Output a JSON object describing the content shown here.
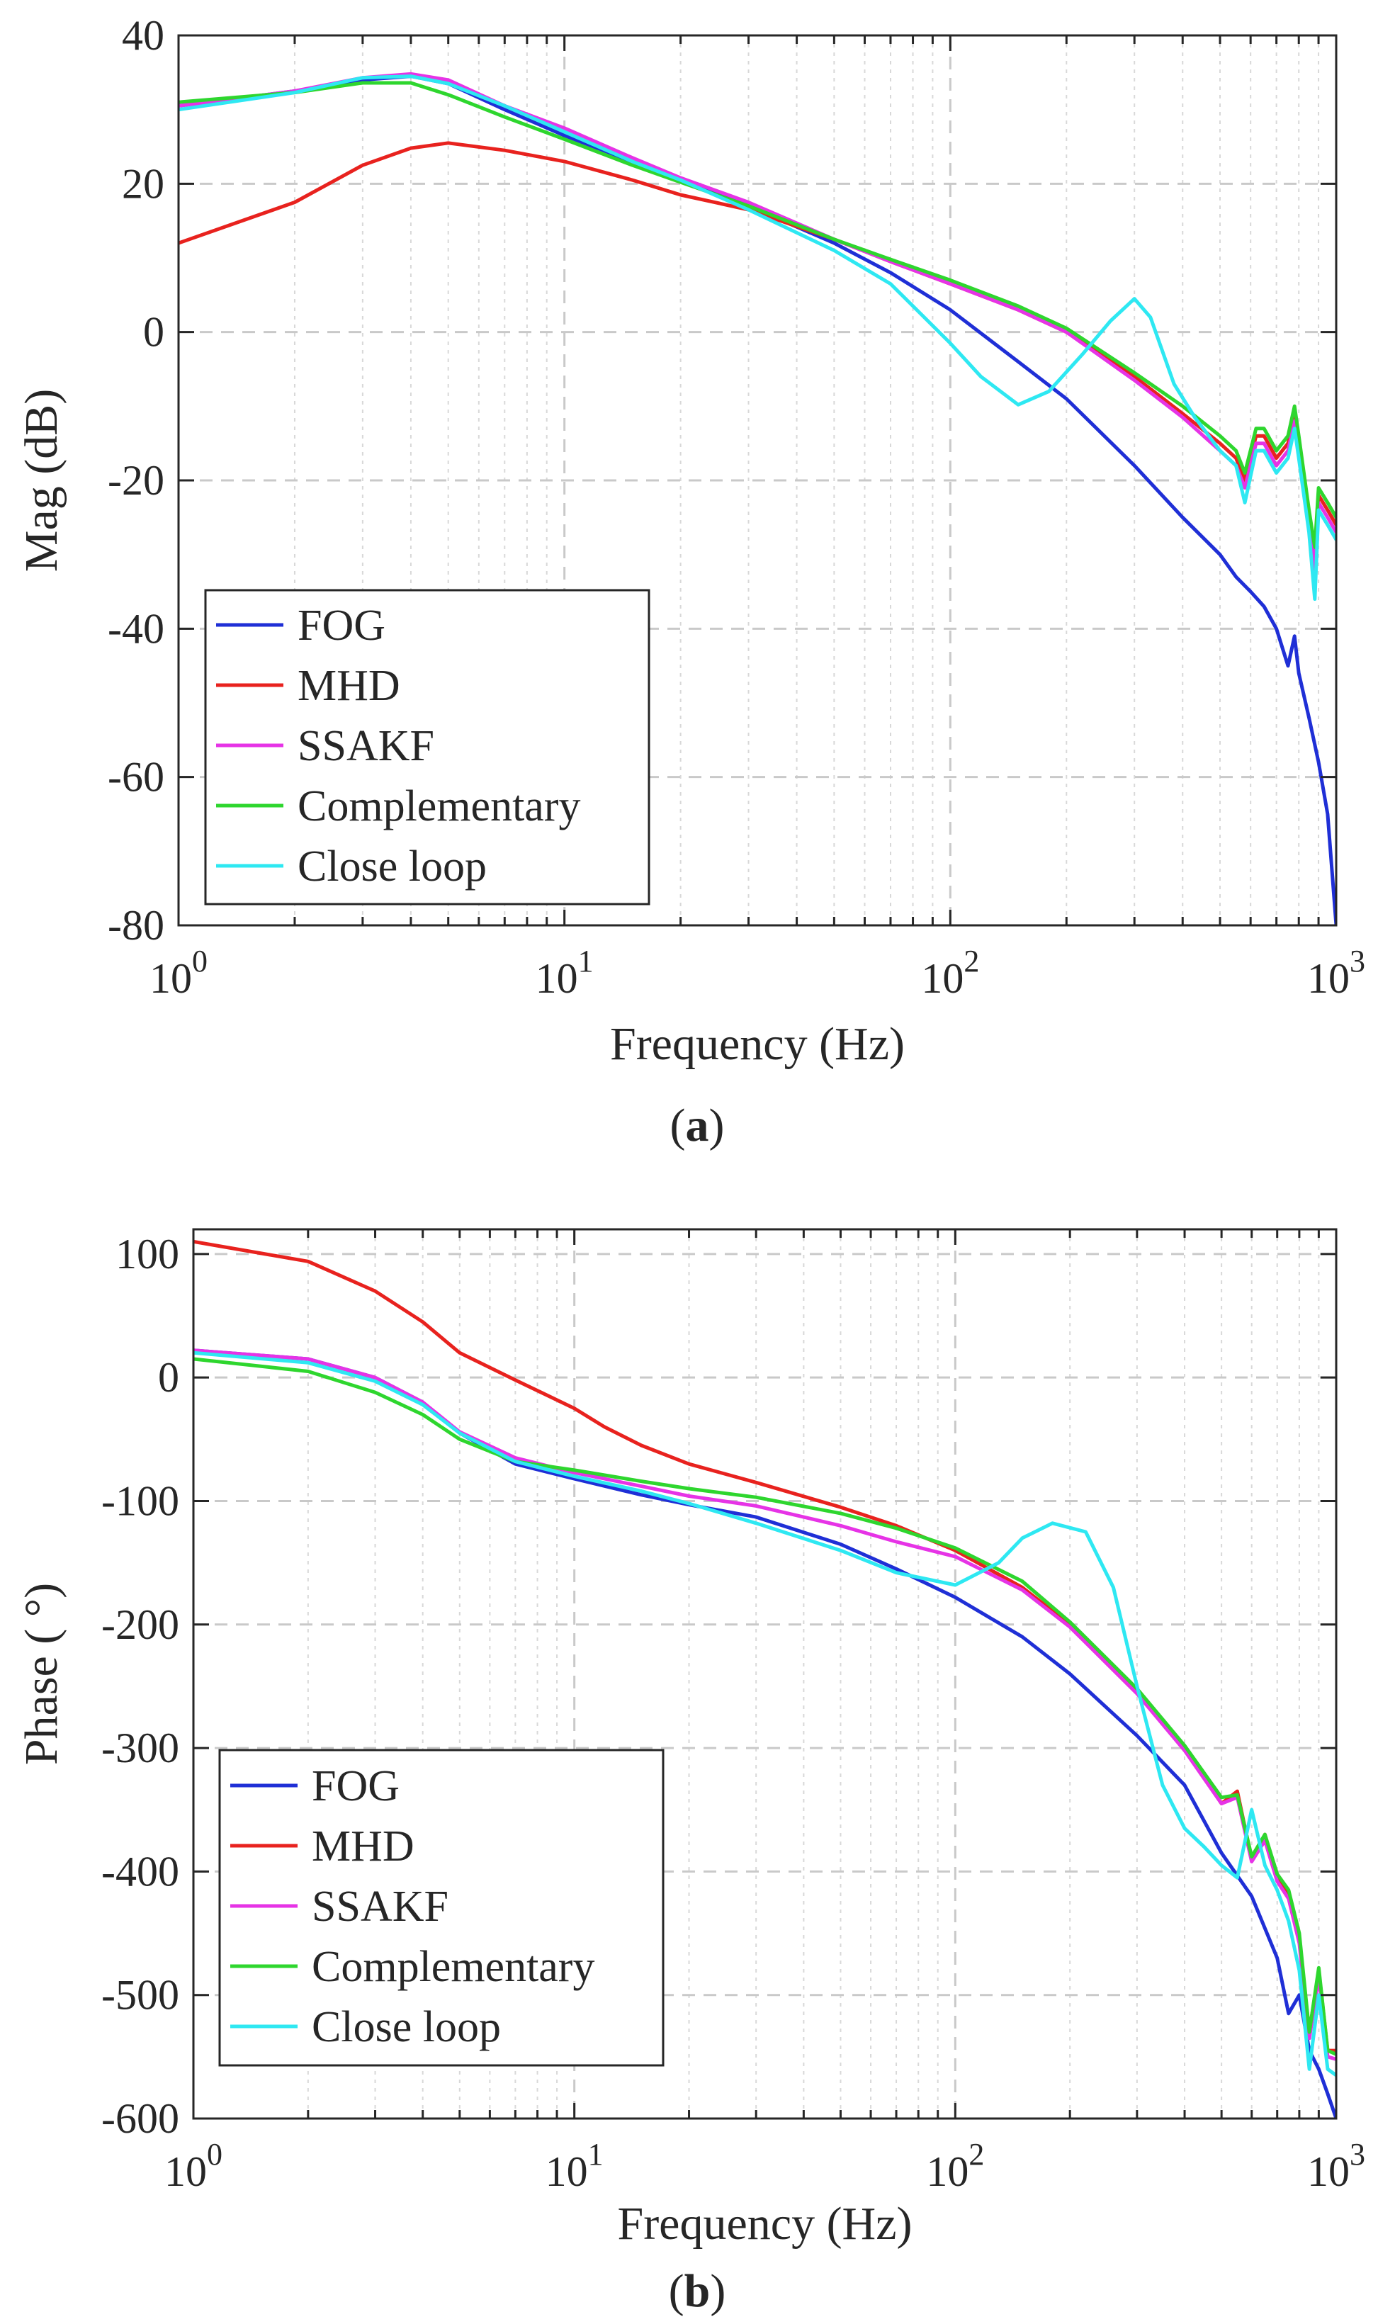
{
  "chart_data": [
    {
      "panel_label": "a",
      "type": "line",
      "xscale": "log",
      "xlabel": "Frequency (Hz)",
      "ylabel": "Mag (dB)",
      "xlim": [
        1,
        1000
      ],
      "ylim": [
        -80,
        40
      ],
      "xticks": [
        {
          "base": "10",
          "exp": "0",
          "value": 1
        },
        {
          "base": "10",
          "exp": "1",
          "value": 10
        },
        {
          "base": "10",
          "exp": "2",
          "value": 100
        },
        {
          "base": "10",
          "exp": "3",
          "value": 1000
        }
      ],
      "yticks": [
        "40",
        "20",
        "0",
        "-20",
        "-40",
        "-60",
        "-80"
      ],
      "grid": true,
      "legend_position": "bottom-left",
      "series": [
        {
          "name": "FOG",
          "color": "#1f2fd6",
          "x": [
            1,
            2,
            3,
            4,
            5,
            7,
            10,
            15,
            20,
            30,
            50,
            70,
            100,
            150,
            200,
            300,
            400,
            500,
            550,
            600,
            650,
            700,
            750,
            780,
            800,
            850,
            900,
            950,
            1000
          ],
          "y": [
            30.5,
            32.5,
            34,
            34.5,
            33.5,
            30,
            26.5,
            23,
            20.5,
            17,
            12,
            8,
            3,
            -4,
            -9,
            -18,
            -25,
            -30,
            -33,
            -35,
            -37,
            -40,
            -45,
            -41,
            -46,
            -52,
            -58,
            -65,
            -80
          ]
        },
        {
          "name": "MHD",
          "color": "#e8221e",
          "x": [
            1,
            2,
            3,
            4,
            5,
            7,
            10,
            15,
            20,
            30,
            50,
            70,
            100,
            150,
            200,
            300,
            400,
            500,
            550,
            580,
            620,
            650,
            700,
            750,
            780,
            800,
            850,
            880,
            900,
            950,
            1000
          ],
          "y": [
            12,
            17.5,
            22.5,
            24.8,
            25.5,
            24.5,
            23,
            20.5,
            18.5,
            16.5,
            12.5,
            9.5,
            6.5,
            3,
            0,
            -6,
            -11,
            -15,
            -17,
            -20,
            -14,
            -14,
            -17,
            -15,
            -11,
            -15,
            -25,
            -30,
            -22,
            -24,
            -26
          ]
        },
        {
          "name": "SSAKF",
          "color": "#e633e6",
          "x": [
            1,
            2,
            3,
            4,
            5,
            7,
            10,
            15,
            20,
            30,
            50,
            70,
            100,
            150,
            200,
            300,
            400,
            500,
            550,
            580,
            620,
            650,
            700,
            750,
            780,
            800,
            850,
            880,
            900,
            950,
            1000
          ],
          "y": [
            30.5,
            32.5,
            34.3,
            34.8,
            34,
            30.5,
            27.5,
            23.5,
            20.8,
            17.5,
            12.5,
            9.5,
            6.5,
            3,
            0,
            -6.5,
            -11.5,
            -16,
            -18,
            -21,
            -15,
            -15,
            -18,
            -16,
            -12,
            -16,
            -26,
            -32,
            -23,
            -25,
            -27
          ]
        },
        {
          "name": "Complementary",
          "color": "#2ed62e",
          "x": [
            1,
            2,
            3,
            4,
            5,
            7,
            10,
            15,
            20,
            30,
            50,
            70,
            100,
            150,
            200,
            300,
            400,
            500,
            550,
            580,
            620,
            650,
            700,
            750,
            780,
            800,
            850,
            880,
            900,
            950,
            1000
          ],
          "y": [
            31,
            32.3,
            33.6,
            33.6,
            32,
            29,
            26,
            22.5,
            20.2,
            17,
            12.5,
            9.8,
            7,
            3.5,
            0.5,
            -5.5,
            -10,
            -14,
            -16,
            -19,
            -13,
            -13,
            -16,
            -14,
            -10,
            -14,
            -24,
            -29,
            -21,
            -23,
            -25
          ]
        },
        {
          "name": "Close loop",
          "color": "#2ee8f2",
          "x": [
            1,
            2,
            3,
            4,
            5,
            7,
            10,
            15,
            20,
            30,
            50,
            70,
            100,
            120,
            150,
            180,
            220,
            260,
            300,
            330,
            380,
            430,
            500,
            550,
            580,
            620,
            650,
            700,
            750,
            780,
            800,
            850,
            880,
            900,
            950,
            1000
          ],
          "y": [
            30,
            32.3,
            34.3,
            34.5,
            33.5,
            30.5,
            27,
            23,
            20.5,
            16.5,
            11,
            6.5,
            -1.5,
            -6,
            -9.8,
            -8,
            -3,
            1.5,
            4.5,
            2,
            -7,
            -11.5,
            -16,
            -18,
            -23,
            -16,
            -16,
            -19,
            -17,
            -13,
            -17,
            -27,
            -36,
            -24,
            -26,
            -28
          ]
        }
      ]
    },
    {
      "panel_label": "b",
      "type": "line",
      "xscale": "log",
      "xlabel": "Frequency (Hz)",
      "ylabel": "Phase ( °)",
      "xlim": [
        1,
        1000
      ],
      "ylim": [
        -600,
        120
      ],
      "xticks": [
        {
          "base": "10",
          "exp": "0",
          "value": 1
        },
        {
          "base": "10",
          "exp": "1",
          "value": 10
        },
        {
          "base": "10",
          "exp": "2",
          "value": 100
        },
        {
          "base": "10",
          "exp": "3",
          "value": 1000
        }
      ],
      "yticks": [
        "100",
        "0",
        "-100",
        "-200",
        "-300",
        "-400",
        "-500",
        "-600"
      ],
      "grid": true,
      "legend_position": "bottom-left",
      "series": [
        {
          "name": "FOG",
          "color": "#1f2fd6",
          "x": [
            1,
            2,
            3,
            4,
            5,
            7,
            10,
            15,
            20,
            30,
            50,
            70,
            100,
            150,
            200,
            300,
            400,
            500,
            600,
            700,
            750,
            800,
            850,
            900,
            950,
            1000
          ],
          "y": [
            22,
            15,
            0,
            -20,
            -45,
            -70,
            -82,
            -95,
            -103,
            -113,
            -135,
            -155,
            -178,
            -210,
            -240,
            -290,
            -330,
            -385,
            -420,
            -470,
            -515,
            -500,
            -545,
            -560,
            -580,
            -600
          ]
        },
        {
          "name": "MHD",
          "color": "#e8221e",
          "x": [
            1,
            2,
            3,
            4,
            5,
            7,
            10,
            12,
            15,
            20,
            30,
            50,
            70,
            100,
            150,
            200,
            300,
            400,
            500,
            550,
            600,
            650,
            700,
            750,
            800,
            850,
            900,
            950,
            1000
          ],
          "y": [
            110,
            94,
            70,
            45,
            20,
            -2,
            -25,
            -40,
            -55,
            -70,
            -85,
            -105,
            -120,
            -140,
            -170,
            -200,
            -255,
            -300,
            -345,
            -335,
            -390,
            -370,
            -405,
            -420,
            -455,
            -530,
            -480,
            -545,
            -545
          ]
        },
        {
          "name": "SSAKF",
          "color": "#e633e6",
          "x": [
            1,
            2,
            3,
            4,
            5,
            7,
            10,
            15,
            20,
            30,
            50,
            70,
            100,
            150,
            200,
            300,
            400,
            500,
            550,
            600,
            650,
            700,
            750,
            800,
            850,
            900,
            950,
            1000
          ],
          "y": [
            22,
            15,
            0,
            -20,
            -44,
            -65,
            -77,
            -88,
            -96,
            -104,
            -120,
            -133,
            -145,
            -172,
            -202,
            -256,
            -302,
            -345,
            -340,
            -392,
            -375,
            -408,
            -422,
            -458,
            -535,
            -485,
            -550,
            -552
          ]
        },
        {
          "name": "Complementary",
          "color": "#2ed62e",
          "x": [
            1,
            2,
            3,
            4,
            5,
            7,
            10,
            15,
            20,
            30,
            50,
            70,
            100,
            150,
            200,
            300,
            400,
            500,
            550,
            600,
            650,
            700,
            750,
            800,
            850,
            900,
            950,
            1000
          ],
          "y": [
            15,
            5,
            -12,
            -30,
            -50,
            -68,
            -75,
            -84,
            -90,
            -97,
            -110,
            -122,
            -138,
            -165,
            -198,
            -252,
            -298,
            -340,
            -338,
            -388,
            -370,
            -402,
            -415,
            -450,
            -530,
            -478,
            -545,
            -548
          ]
        },
        {
          "name": "Close loop",
          "color": "#2ee8f2",
          "x": [
            1,
            2,
            3,
            4,
            5,
            7,
            10,
            15,
            20,
            30,
            50,
            70,
            100,
            130,
            150,
            180,
            220,
            260,
            300,
            350,
            400,
            450,
            500,
            550,
            600,
            650,
            700,
            750,
            800,
            850,
            900,
            950,
            1000
          ],
          "y": [
            20,
            12,
            -3,
            -22,
            -45,
            -68,
            -80,
            -92,
            -102,
            -118,
            -140,
            -158,
            -168,
            -150,
            -130,
            -118,
            -125,
            -170,
            -250,
            -330,
            -365,
            -380,
            -395,
            -405,
            -350,
            -395,
            -415,
            -440,
            -480,
            -560,
            -500,
            -560,
            -565
          ]
        }
      ]
    }
  ]
}
